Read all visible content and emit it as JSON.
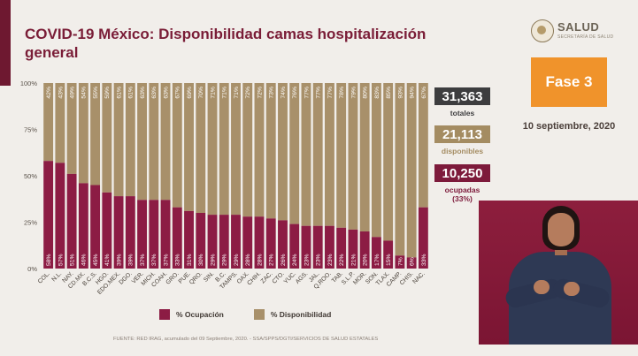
{
  "header": {
    "title_line1": "COVID-19 México: Disponibilidad camas hospitalización",
    "title_line2": "general",
    "logo_text": "SALUD",
    "logo_subtext": "SECRETARÍA DE SALUD"
  },
  "fase_label": "Fase 3",
  "date": "10 septiembre, 2020",
  "kpis": {
    "totales_value": "31,363",
    "totales_label": "totales",
    "disponibles_value": "21,113",
    "disponibles_label": "disponibles",
    "ocupadas_value": "10,250",
    "ocupadas_label": "ocupadas",
    "ocupadas_pct": "(33%)"
  },
  "colors": {
    "ocupacion": "#8c1c44",
    "disponibilidad": "#a8906a",
    "totales_box": "#3d3d3f",
    "disponibles_box": "#a48c62",
    "ocupadas_box": "#7d1a3b",
    "accent_orange": "#f0932b"
  },
  "legend": {
    "ocupacion": "% Ocupación",
    "disponibilidad": "% Disponibilidad"
  },
  "source": "FUENTE: RED IRAG, acumulado del 09 Septiembre, 2020. - SSA/SPPS/DGTI/SERVICIOS DE SALUD ESTATALES",
  "chart_data": {
    "type": "bar",
    "stacked": true,
    "categories": [
      "COL.",
      "N.L.",
      "NAY.",
      "CD.MX.",
      "B.C.S.",
      "HGO.",
      "EDO.MEX.",
      "DGO.",
      "VER.",
      "MICH.",
      "COAH.",
      "GRO.",
      "PUE.",
      "QRO.",
      "SIN.",
      "B.C.",
      "TAMPS.",
      "OAX.",
      "CHIH.",
      "ZAC.",
      "CTO.",
      "YUC.",
      "AGS.",
      "JAL.",
      "Q.ROO.",
      "TAB.",
      "S.L.P.",
      "MOR.",
      "SON.",
      "TLAX.",
      "CAMP.",
      "CHIS.",
      "NAC."
    ],
    "series": [
      {
        "name": "% Ocupación",
        "values": [
          58,
          57,
          51,
          46,
          45,
          41,
          39,
          39,
          37,
          37,
          37,
          33,
          31,
          30,
          29,
          29,
          29,
          28,
          28,
          27,
          26,
          24,
          23,
          23,
          23,
          22,
          21,
          20,
          17,
          15,
          7,
          6,
          33
        ]
      },
      {
        "name": "% Disponibilidad",
        "values": [
          42,
          43,
          49,
          54,
          55,
          59,
          61,
          61,
          63,
          63,
          63,
          67,
          69,
          70,
          71,
          71,
          71,
          72,
          72,
          73,
          74,
          76,
          77,
          77,
          77,
          78,
          79,
          80,
          83,
          85,
          93,
          94,
          67
        ]
      }
    ],
    "y_ticks": [
      "0%",
      "25%",
      "50%",
      "75%",
      "100%"
    ],
    "ylim": [
      0,
      100
    ],
    "legend_position": "bottom"
  }
}
